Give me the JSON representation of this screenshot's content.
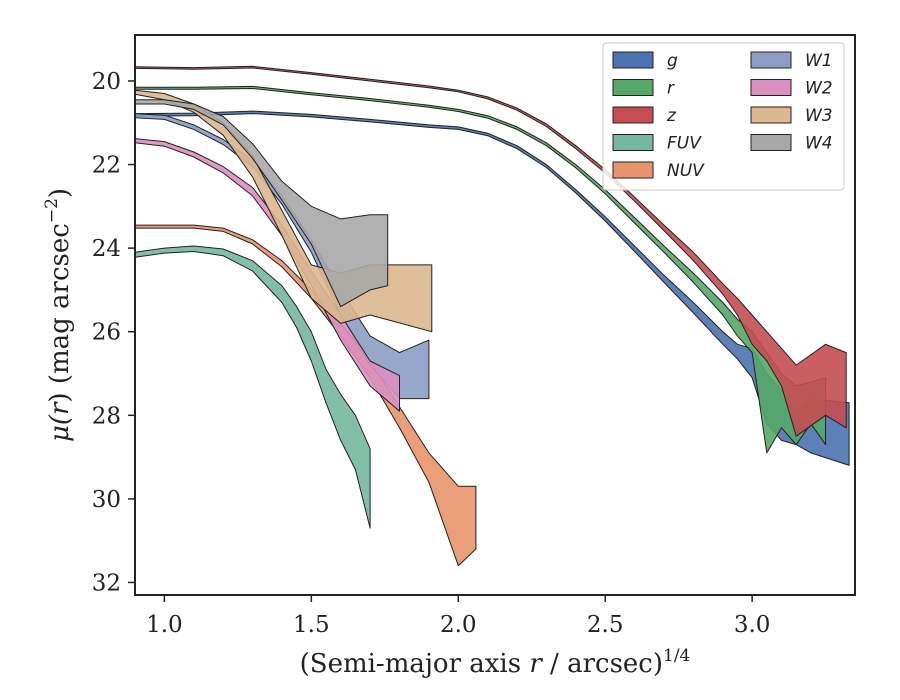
{
  "chart_data": {
    "type": "area",
    "title": "",
    "xlabel": "(Semi-major axis r / arcsec)",
    "xlabel_parts": {
      "pre": "(Semi-major axis ",
      "var": "r",
      "post": " / arcsec)",
      "sup": "1/4"
    },
    "ylabel": "μ(r) (mag arcsec−2)",
    "ylabel_parts": {
      "mu": "μ(",
      "var": "r",
      "mid": ") (mag arcsec",
      "sup": "−2",
      "post": ")"
    },
    "xlim": [
      0.9,
      3.35
    ],
    "ylim": [
      32.3,
      18.9
    ],
    "y_inverted": true,
    "xticks": [
      "1.0",
      "1.5",
      "2.0",
      "2.5",
      "3.0"
    ],
    "xtick_values": [
      1.0,
      1.5,
      2.0,
      2.5,
      3.0
    ],
    "yticks": [
      "20",
      "22",
      "24",
      "26",
      "28",
      "30",
      "32"
    ],
    "ytick_values": [
      20,
      22,
      24,
      26,
      28,
      30,
      32
    ],
    "grid": false,
    "legend_position": "top-right",
    "legend_columns": 2,
    "series": [
      {
        "name": "g",
        "color": "#4c72b0",
        "upper": [
          [
            0.9,
            20.78
          ],
          [
            1.1,
            20.77
          ],
          [
            1.3,
            20.72
          ],
          [
            1.5,
            20.8
          ],
          [
            1.7,
            20.92
          ],
          [
            1.9,
            21.05
          ],
          [
            2.0,
            21.1
          ],
          [
            2.1,
            21.25
          ],
          [
            2.2,
            21.55
          ],
          [
            2.3,
            22.0
          ],
          [
            2.4,
            22.6
          ],
          [
            2.5,
            23.25
          ],
          [
            2.6,
            23.95
          ],
          [
            2.7,
            24.65
          ],
          [
            2.8,
            25.3
          ],
          [
            2.9,
            26.0
          ],
          [
            2.95,
            26.3
          ],
          [
            3.0,
            26.4
          ],
          [
            3.05,
            27.0
          ],
          [
            3.1,
            27.4
          ],
          [
            3.15,
            27.9
          ],
          [
            3.2,
            27.6
          ],
          [
            3.33,
            27.7
          ]
        ],
        "lower": [
          [
            0.9,
            20.84
          ],
          [
            1.1,
            20.83
          ],
          [
            1.3,
            20.78
          ],
          [
            1.5,
            20.86
          ],
          [
            1.7,
            20.98
          ],
          [
            1.9,
            21.11
          ],
          [
            2.0,
            21.16
          ],
          [
            2.1,
            21.31
          ],
          [
            2.2,
            21.62
          ],
          [
            2.3,
            22.07
          ],
          [
            2.4,
            22.68
          ],
          [
            2.5,
            23.35
          ],
          [
            2.6,
            24.08
          ],
          [
            2.7,
            24.82
          ],
          [
            2.8,
            25.55
          ],
          [
            2.9,
            26.3
          ],
          [
            2.95,
            26.65
          ],
          [
            3.0,
            27.1
          ],
          [
            3.05,
            28.2
          ],
          [
            3.1,
            28.6
          ],
          [
            3.15,
            28.7
          ],
          [
            3.2,
            28.9
          ],
          [
            3.33,
            29.2
          ]
        ]
      },
      {
        "name": "r",
        "color": "#55a868",
        "upper": [
          [
            0.9,
            20.15
          ],
          [
            1.1,
            20.15
          ],
          [
            1.3,
            20.13
          ],
          [
            1.5,
            20.28
          ],
          [
            1.7,
            20.42
          ],
          [
            1.9,
            20.58
          ],
          [
            2.0,
            20.68
          ],
          [
            2.1,
            20.83
          ],
          [
            2.2,
            21.1
          ],
          [
            2.3,
            21.48
          ],
          [
            2.4,
            22.0
          ],
          [
            2.5,
            22.6
          ],
          [
            2.6,
            23.27
          ],
          [
            2.7,
            23.95
          ],
          [
            2.8,
            24.6
          ],
          [
            2.9,
            25.3
          ],
          [
            2.95,
            25.7
          ],
          [
            3.0,
            26.0
          ],
          [
            3.05,
            26.5
          ],
          [
            3.1,
            27.0
          ],
          [
            3.15,
            27.3
          ],
          [
            3.2,
            27.2
          ],
          [
            3.25,
            27.1
          ]
        ],
        "lower": [
          [
            0.9,
            20.2
          ],
          [
            1.1,
            20.2
          ],
          [
            1.3,
            20.18
          ],
          [
            1.5,
            20.33
          ],
          [
            1.7,
            20.47
          ],
          [
            1.9,
            20.63
          ],
          [
            2.0,
            20.73
          ],
          [
            2.1,
            20.89
          ],
          [
            2.2,
            21.16
          ],
          [
            2.3,
            21.55
          ],
          [
            2.4,
            22.08
          ],
          [
            2.5,
            22.7
          ],
          [
            2.6,
            23.4
          ],
          [
            2.7,
            24.1
          ],
          [
            2.8,
            24.82
          ],
          [
            2.9,
            25.6
          ],
          [
            2.95,
            26.1
          ],
          [
            3.0,
            26.5
          ],
          [
            3.05,
            28.9
          ],
          [
            3.1,
            28.3
          ],
          [
            3.15,
            28.7
          ],
          [
            3.2,
            28.2
          ],
          [
            3.25,
            28.7
          ]
        ]
      },
      {
        "name": "z",
        "color": "#c44e52",
        "upper": [
          [
            0.9,
            19.66
          ],
          [
            1.1,
            19.68
          ],
          [
            1.3,
            19.65
          ],
          [
            1.5,
            19.8
          ],
          [
            1.7,
            19.96
          ],
          [
            1.9,
            20.12
          ],
          [
            2.0,
            20.22
          ],
          [
            2.1,
            20.38
          ],
          [
            2.2,
            20.65
          ],
          [
            2.3,
            21.03
          ],
          [
            2.4,
            21.55
          ],
          [
            2.5,
            22.12
          ],
          [
            2.6,
            22.78
          ],
          [
            2.7,
            23.45
          ],
          [
            2.8,
            24.1
          ],
          [
            2.9,
            24.85
          ],
          [
            2.95,
            25.2
          ],
          [
            3.0,
            25.6
          ],
          [
            3.05,
            26.0
          ],
          [
            3.1,
            26.4
          ],
          [
            3.15,
            26.8
          ],
          [
            3.25,
            26.3
          ],
          [
            3.32,
            26.5
          ]
        ],
        "lower": [
          [
            0.9,
            19.7
          ],
          [
            1.1,
            19.72
          ],
          [
            1.3,
            19.69
          ],
          [
            1.5,
            19.84
          ],
          [
            1.7,
            20.0
          ],
          [
            1.9,
            20.16
          ],
          [
            2.0,
            20.26
          ],
          [
            2.1,
            20.43
          ],
          [
            2.2,
            20.7
          ],
          [
            2.3,
            21.09
          ],
          [
            2.4,
            21.62
          ],
          [
            2.5,
            22.2
          ],
          [
            2.6,
            22.88
          ],
          [
            2.7,
            23.58
          ],
          [
            2.8,
            24.3
          ],
          [
            2.9,
            25.1
          ],
          [
            2.95,
            25.6
          ],
          [
            3.0,
            26.3
          ],
          [
            3.05,
            26.7
          ],
          [
            3.1,
            27.3
          ],
          [
            3.15,
            28.5
          ],
          [
            3.25,
            28.0
          ],
          [
            3.32,
            28.3
          ]
        ]
      },
      {
        "name": "FUV",
        "color": "#76b7a0",
        "upper": [
          [
            0.9,
            24.1
          ],
          [
            1.0,
            24.0
          ],
          [
            1.1,
            23.95
          ],
          [
            1.2,
            24.02
          ],
          [
            1.3,
            24.3
          ],
          [
            1.4,
            24.9
          ],
          [
            1.45,
            25.4
          ],
          [
            1.5,
            26.0
          ],
          [
            1.55,
            26.9
          ],
          [
            1.6,
            27.5
          ],
          [
            1.65,
            28.0
          ],
          [
            1.7,
            28.8
          ]
        ],
        "lower": [
          [
            0.9,
            24.22
          ],
          [
            1.0,
            24.12
          ],
          [
            1.1,
            24.08
          ],
          [
            1.2,
            24.18
          ],
          [
            1.3,
            24.55
          ],
          [
            1.4,
            25.3
          ],
          [
            1.45,
            25.9
          ],
          [
            1.5,
            26.7
          ],
          [
            1.55,
            27.7
          ],
          [
            1.6,
            28.6
          ],
          [
            1.65,
            29.3
          ],
          [
            1.7,
            30.7
          ]
        ]
      },
      {
        "name": "NUV",
        "color": "#e8946c",
        "upper": [
          [
            0.9,
            23.45
          ],
          [
            1.0,
            23.45
          ],
          [
            1.1,
            23.45
          ],
          [
            1.2,
            23.52
          ],
          [
            1.3,
            23.8
          ],
          [
            1.4,
            24.3
          ],
          [
            1.5,
            25.0
          ],
          [
            1.6,
            25.8
          ],
          [
            1.7,
            26.7
          ],
          [
            1.8,
            27.8
          ],
          [
            1.9,
            28.9
          ],
          [
            2.0,
            29.7
          ],
          [
            2.06,
            29.7
          ]
        ],
        "lower": [
          [
            0.9,
            23.52
          ],
          [
            1.0,
            23.52
          ],
          [
            1.1,
            23.52
          ],
          [
            1.2,
            23.6
          ],
          [
            1.3,
            23.9
          ],
          [
            1.4,
            24.45
          ],
          [
            1.5,
            25.2
          ],
          [
            1.6,
            26.1
          ],
          [
            1.7,
            27.1
          ],
          [
            1.8,
            28.3
          ],
          [
            1.9,
            29.6
          ],
          [
            2.0,
            31.6
          ],
          [
            2.06,
            31.2
          ]
        ]
      },
      {
        "name": "W1",
        "color": "#8c9dc4",
        "upper": [
          [
            0.9,
            20.78
          ],
          [
            1.0,
            20.82
          ],
          [
            1.1,
            21.05
          ],
          [
            1.2,
            21.4
          ],
          [
            1.3,
            21.9
          ],
          [
            1.4,
            22.75
          ],
          [
            1.5,
            23.8
          ],
          [
            1.6,
            25.0
          ],
          [
            1.7,
            26.1
          ],
          [
            1.8,
            26.5
          ],
          [
            1.9,
            26.2
          ]
        ],
        "lower": [
          [
            0.9,
            20.88
          ],
          [
            1.0,
            20.92
          ],
          [
            1.1,
            21.16
          ],
          [
            1.2,
            21.52
          ],
          [
            1.3,
            22.05
          ],
          [
            1.4,
            22.95
          ],
          [
            1.5,
            24.1
          ],
          [
            1.6,
            25.6
          ],
          [
            1.7,
            26.8
          ],
          [
            1.8,
            27.6
          ],
          [
            1.9,
            27.6
          ]
        ]
      },
      {
        "name": "W2",
        "color": "#dc8fc0",
        "upper": [
          [
            0.9,
            21.38
          ],
          [
            1.0,
            21.45
          ],
          [
            1.1,
            21.7
          ],
          [
            1.2,
            22.05
          ],
          [
            1.3,
            22.55
          ],
          [
            1.4,
            23.45
          ],
          [
            1.5,
            24.55
          ],
          [
            1.6,
            25.6
          ],
          [
            1.7,
            26.7
          ],
          [
            1.8,
            27.05
          ]
        ],
        "lower": [
          [
            0.9,
            21.48
          ],
          [
            1.0,
            21.56
          ],
          [
            1.1,
            21.82
          ],
          [
            1.2,
            22.2
          ],
          [
            1.3,
            22.75
          ],
          [
            1.4,
            23.7
          ],
          [
            1.5,
            24.9
          ],
          [
            1.6,
            26.2
          ],
          [
            1.7,
            27.3
          ],
          [
            1.8,
            27.9
          ]
        ]
      },
      {
        "name": "W3",
        "color": "#dcb78f",
        "upper": [
          [
            0.9,
            20.22
          ],
          [
            1.0,
            20.3
          ],
          [
            1.1,
            20.55
          ],
          [
            1.2,
            21.0
          ],
          [
            1.3,
            21.8
          ],
          [
            1.4,
            23.1
          ],
          [
            1.5,
            24.4
          ],
          [
            1.6,
            24.6
          ],
          [
            1.7,
            24.4
          ],
          [
            1.91,
            24.4
          ]
        ],
        "lower": [
          [
            0.9,
            20.32
          ],
          [
            1.0,
            20.45
          ],
          [
            1.1,
            20.75
          ],
          [
            1.2,
            21.3
          ],
          [
            1.3,
            22.3
          ],
          [
            1.4,
            23.7
          ],
          [
            1.5,
            25.2
          ],
          [
            1.6,
            25.8
          ],
          [
            1.7,
            25.6
          ],
          [
            1.91,
            26.0
          ]
        ]
      },
      {
        "name": "W4",
        "color": "#a8a8a8",
        "upper": [
          [
            0.9,
            20.45
          ],
          [
            1.0,
            20.45
          ],
          [
            1.1,
            20.55
          ],
          [
            1.2,
            20.85
          ],
          [
            1.3,
            21.5
          ],
          [
            1.4,
            22.4
          ],
          [
            1.5,
            23.0
          ],
          [
            1.6,
            23.3
          ],
          [
            1.7,
            23.2
          ],
          [
            1.76,
            23.2
          ]
        ],
        "lower": [
          [
            0.9,
            20.55
          ],
          [
            1.0,
            20.55
          ],
          [
            1.1,
            20.68
          ],
          [
            1.2,
            21.05
          ],
          [
            1.3,
            21.85
          ],
          [
            1.4,
            22.85
          ],
          [
            1.5,
            23.9
          ],
          [
            1.6,
            25.4
          ],
          [
            1.7,
            25.0
          ],
          [
            1.76,
            24.9
          ]
        ]
      }
    ]
  }
}
